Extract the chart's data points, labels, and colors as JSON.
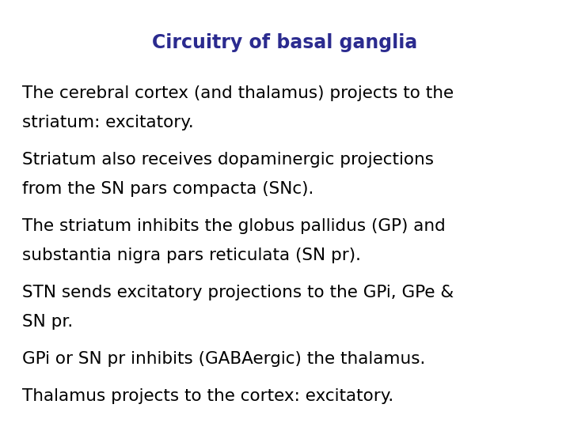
{
  "title": "Circuitry of basal ganglia",
  "title_color": "#2b2b8f",
  "title_fontsize": 17,
  "background_color": "#ffffff",
  "text_color": "#000000",
  "text_fontsize": 15.5,
  "paragraphs": [
    [
      "The cerebral cortex (and thalamus) projects to the",
      "striatum: excitatory."
    ],
    [
      "Striatum also receives dopaminergic projections",
      "from the SN pars compacta (SNc)."
    ],
    [
      "The striatum inhibits the globus pallidus (GP) and",
      "substantia nigra pars reticulata (SN pr)."
    ],
    [
      "STN sends excitatory projections to the GPi, GPe &",
      "SN pr."
    ],
    [
      "GPi or SN pr inhibits (GABAergic) the thalamus."
    ],
    [
      "Thalamus projects to the cortex: excitatory."
    ]
  ]
}
